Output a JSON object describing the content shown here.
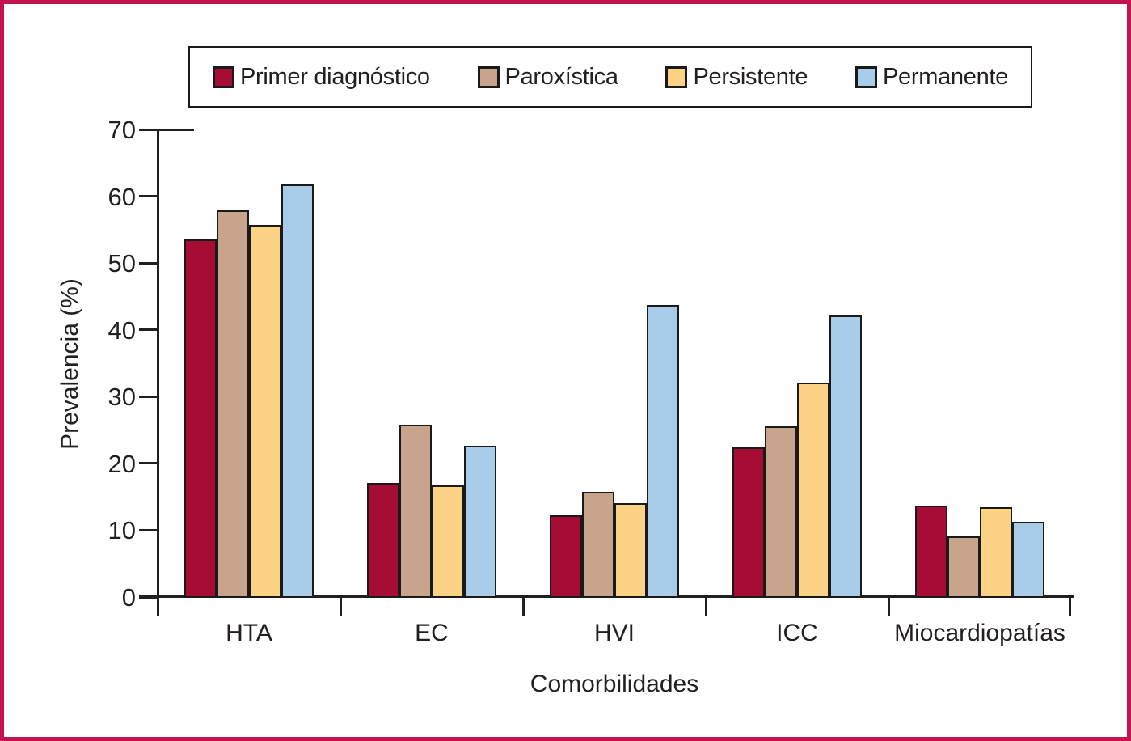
{
  "frame": {
    "border_color": "#C5134F",
    "background_color": "#FFFFFF",
    "axis_color": "#231F20",
    "bar_outline_color": "#1A1A1A"
  },
  "legend": {
    "position": "top",
    "items": [
      {
        "label": "Primer diagnóstico",
        "color": "#A60C34"
      },
      {
        "label": "Paroxística",
        "color": "#C8A48D"
      },
      {
        "label": "Persistente",
        "color": "#FCD384"
      },
      {
        "label": "Permanente",
        "color": "#A9CCE9"
      }
    ]
  },
  "chart_data": {
    "type": "bar",
    "title": "",
    "xlabel": "Comorbilidades",
    "ylabel": "Prevalencia (%)",
    "categories": [
      "HTA",
      "EC",
      "HVI",
      "ICC",
      "Miocardiopatías"
    ],
    "series": [
      {
        "name": "Primer diagnóstico",
        "color": "#A60C34",
        "values": [
          53.5,
          17.1,
          12.2,
          22.4,
          13.7
        ]
      },
      {
        "name": "Paroxística",
        "color": "#C8A48D",
        "values": [
          57.9,
          25.8,
          15.8,
          25.6,
          9.1
        ]
      },
      {
        "name": "Persistente",
        "color": "#FCD384",
        "values": [
          55.7,
          16.7,
          14.0,
          32.1,
          13.4
        ]
      },
      {
        "name": "Permanente",
        "color": "#A9CCE9",
        "values": [
          61.8,
          22.6,
          43.7,
          42.2,
          11.3
        ]
      }
    ],
    "ylim": [
      0,
      70
    ],
    "yticks": [
      0,
      10,
      20,
      30,
      40,
      50,
      60,
      70
    ],
    "grid": false,
    "legend_position": "top"
  }
}
